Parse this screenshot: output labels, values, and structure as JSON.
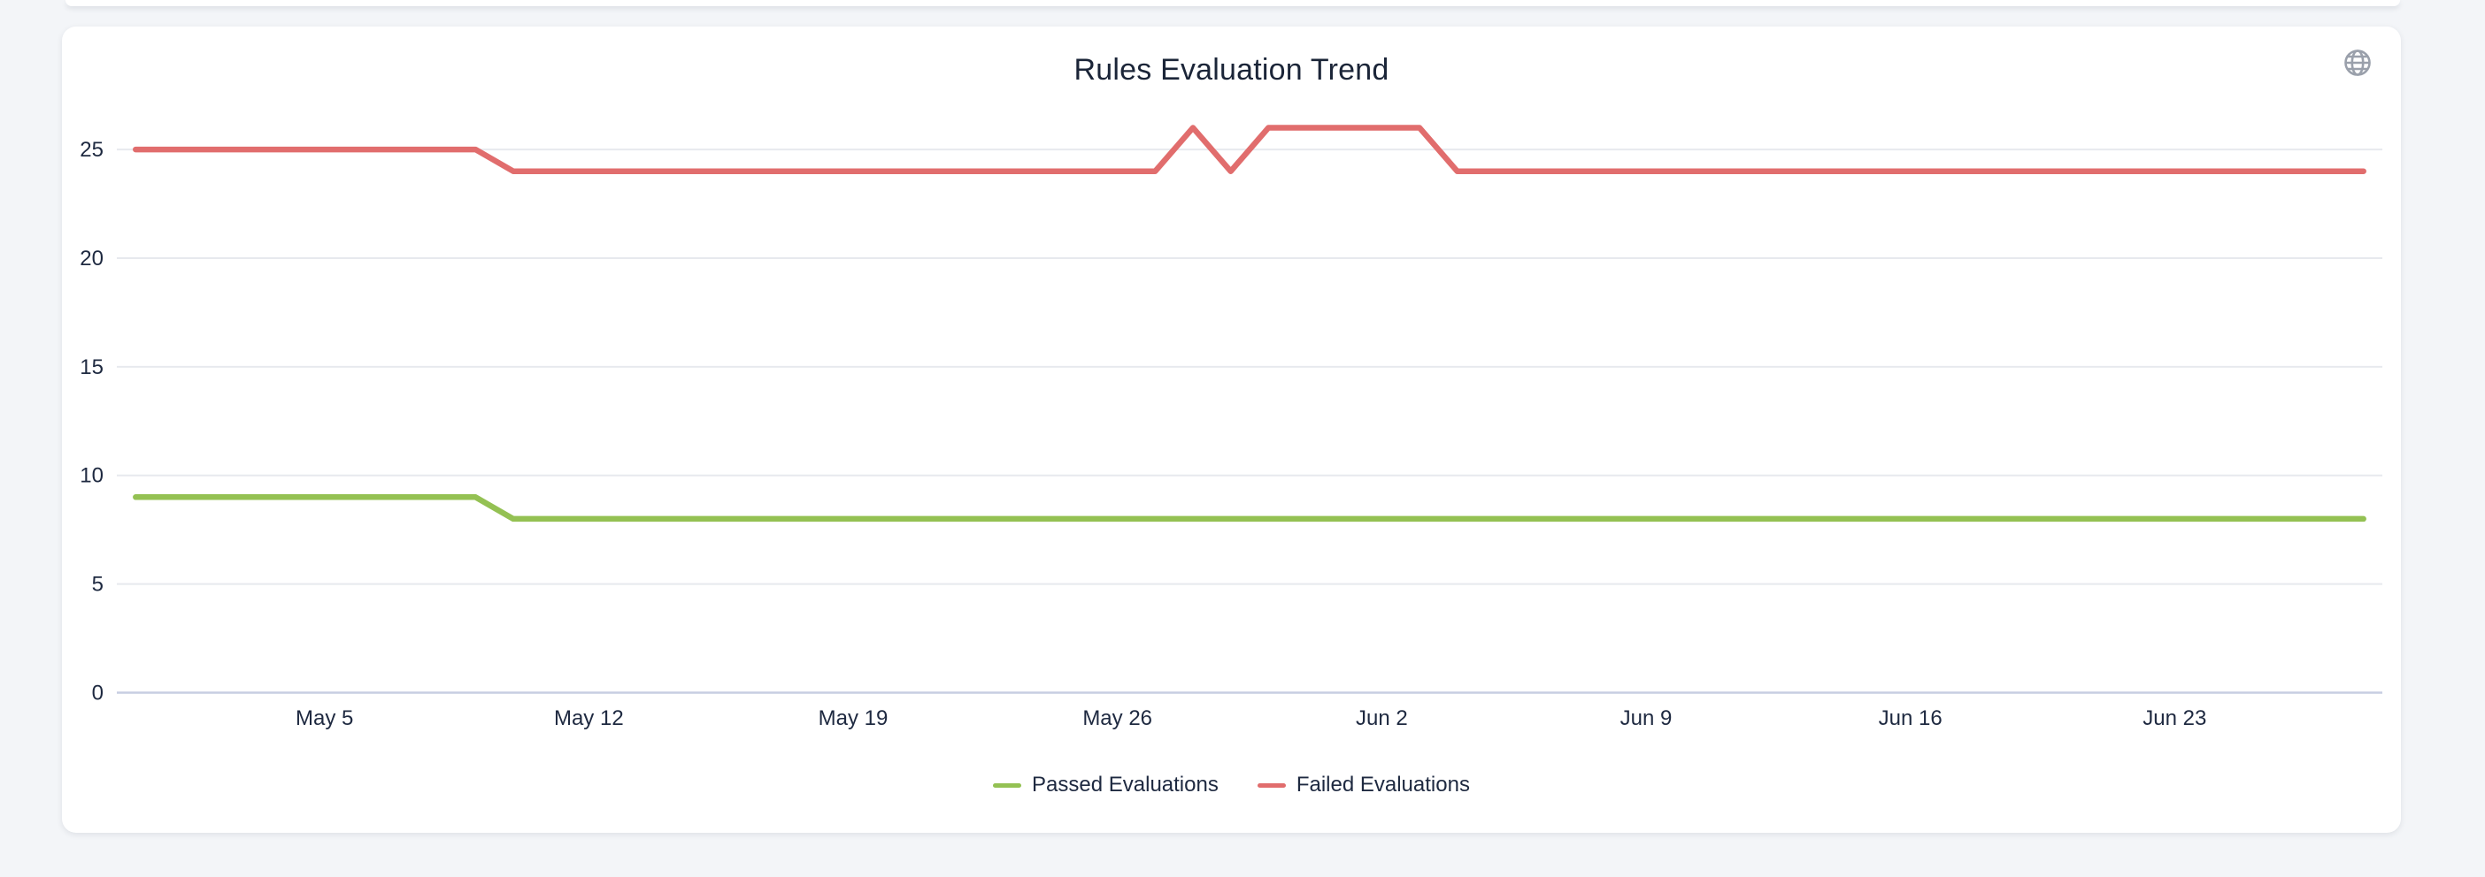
{
  "colors": {
    "page_bg": "#f3f5f8",
    "card_bg": "#ffffff",
    "grid_line": "#e7e9ee",
    "axis_line": "#c7cee2",
    "axis_text": "#1e2940",
    "title_text": "#1b2538",
    "icon_gray": "#9aa0ab",
    "passed_green": "#94c153",
    "failed_red": "#e16d6d"
  },
  "card": {
    "globe_icon": "globe-icon"
  },
  "chart_data": {
    "type": "line",
    "title": "Rules Evaluation Trend",
    "grid": true,
    "legend_position": "bottom",
    "x_axis": {
      "num_points": 60,
      "tick_labels": [
        "May 5",
        "May 12",
        "May 19",
        "May 26",
        "Jun 2",
        "Jun 9",
        "Jun 16",
        "Jun 23"
      ],
      "tick_indices": [
        5,
        12,
        19,
        26,
        33,
        40,
        47,
        54
      ]
    },
    "y_axis": {
      "ticks": [
        0,
        5,
        10,
        15,
        20,
        25
      ],
      "max": 26.56
    },
    "series": [
      {
        "name": "Passed Evaluations",
        "color": "#94c153",
        "values": [
          9,
          9,
          9,
          9,
          9,
          9,
          9,
          9,
          9,
          9,
          8,
          8,
          8,
          8,
          8,
          8,
          8,
          8,
          8,
          8,
          8,
          8,
          8,
          8,
          8,
          8,
          8,
          8,
          8,
          8,
          8,
          8,
          8,
          8,
          8,
          8,
          8,
          8,
          8,
          8,
          8,
          8,
          8,
          8,
          8,
          8,
          8,
          8,
          8,
          8,
          8,
          8,
          8,
          8,
          8,
          8,
          8,
          8,
          8,
          8
        ]
      },
      {
        "name": "Failed Evaluations",
        "color": "#e16d6d",
        "values": [
          25,
          25,
          25,
          25,
          25,
          25,
          25,
          25,
          25,
          25,
          24,
          24,
          24,
          24,
          24,
          24,
          24,
          24,
          24,
          24,
          24,
          24,
          24,
          24,
          24,
          24,
          24,
          24,
          26,
          24,
          26,
          26,
          26,
          26,
          26,
          24,
          24,
          24,
          24,
          24,
          24,
          24,
          24,
          24,
          24,
          24,
          24,
          24,
          24,
          24,
          24,
          24,
          24,
          24,
          24,
          24,
          24,
          24,
          24,
          24
        ]
      }
    ]
  }
}
